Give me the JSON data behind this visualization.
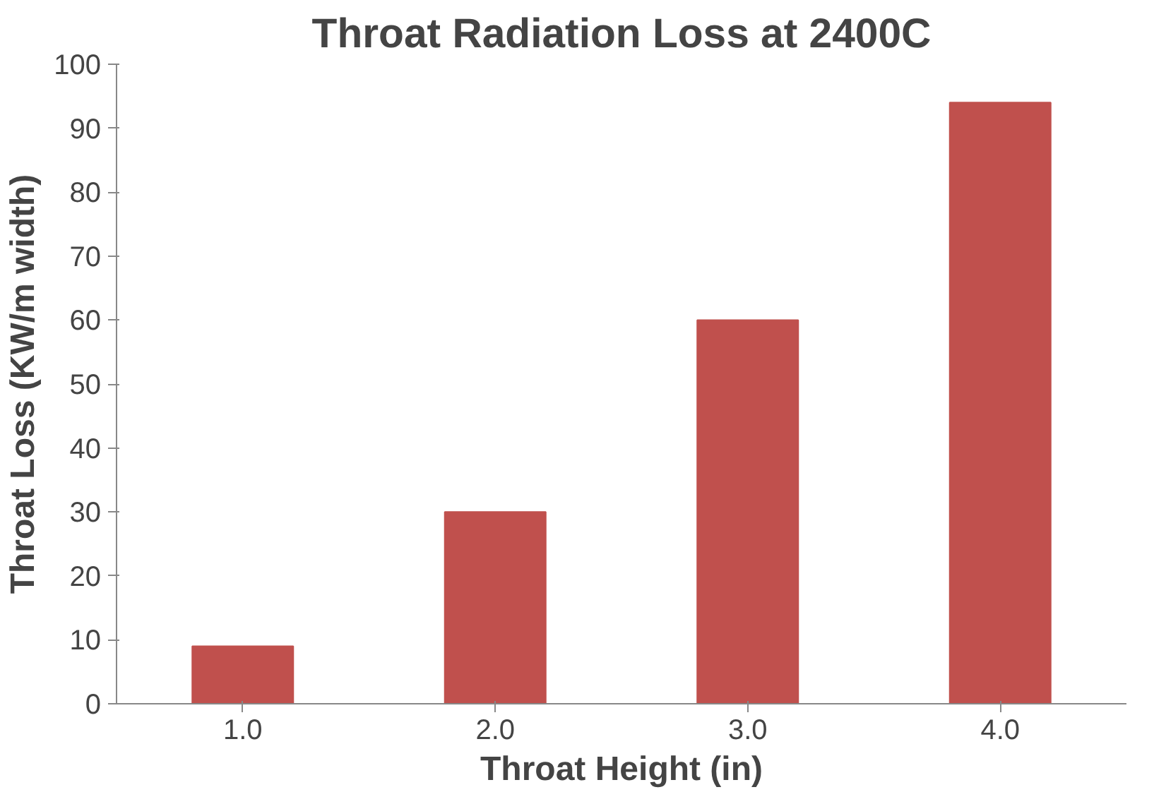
{
  "chart_data": {
    "type": "bar",
    "title": "Throat Radiation Loss at 2400C",
    "xlabel": "Throat Height (in)",
    "ylabel": "Throat Loss (KW/m width)",
    "categories": [
      "1.0",
      "2.0",
      "3.0",
      "4.0"
    ],
    "values": [
      9,
      30,
      60,
      94
    ],
    "color": "#c0504d",
    "ylim": [
      0,
      100
    ],
    "yticks": [
      0,
      10,
      20,
      30,
      40,
      50,
      60,
      70,
      80,
      90,
      100
    ],
    "grid": false
  }
}
